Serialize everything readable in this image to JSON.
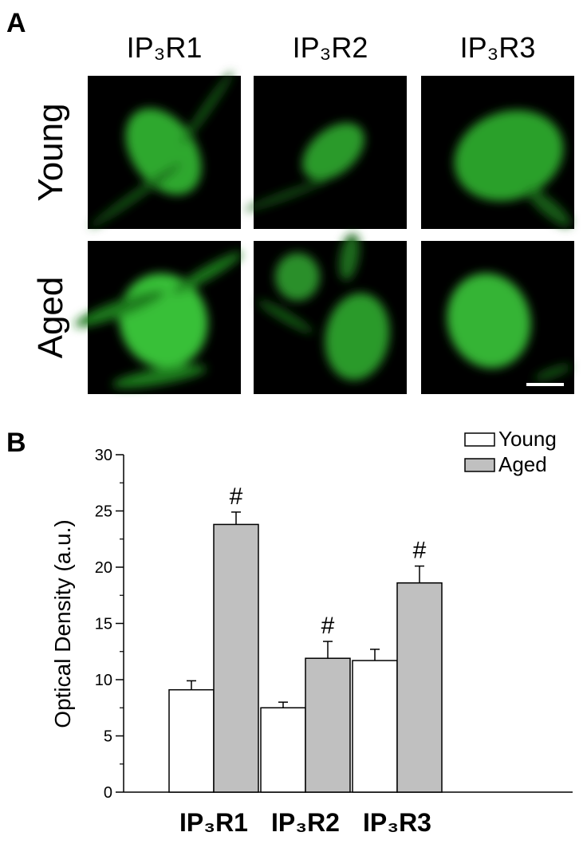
{
  "panel_a": {
    "label": "A",
    "columns": [
      "IP₃R1",
      "IP₃R2",
      "IP₃R3"
    ],
    "rows": [
      "Young",
      "Aged"
    ]
  },
  "chart_data": {
    "type": "bar",
    "panel_label": "B",
    "y_label": "Optical Density (a.u.)",
    "categories": [
      "IP₃R1",
      "IP₃R2",
      "IP₃R3"
    ],
    "series": [
      {
        "name": "Young",
        "color": "#ffffff",
        "values": [
          9.1,
          7.5,
          11.7
        ],
        "errors": [
          0.8,
          0.5,
          1.0
        ]
      },
      {
        "name": "Aged",
        "color": "#c0c0c0",
        "values": [
          23.8,
          11.9,
          18.6
        ],
        "errors": [
          1.1,
          1.5,
          1.5
        ],
        "annotations": [
          "#",
          "#",
          "#"
        ]
      }
    ],
    "ylim": [
      0,
      30
    ],
    "yticks": [
      0,
      5,
      10,
      15,
      20,
      25,
      30
    ],
    "yminorticks": [
      2.5,
      7.5,
      12.5,
      17.5,
      22.5,
      27.5
    ],
    "legend": "top-right"
  }
}
